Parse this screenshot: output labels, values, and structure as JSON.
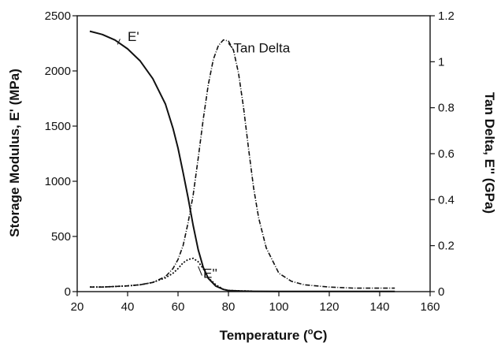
{
  "chart_data": {
    "type": "line",
    "title": "",
    "xlabel_main": "Temperature (",
    "xlabel_sup": "o",
    "xlabel_end": "C)",
    "ylabel_left": "Storage Modulus, E' (MPa)",
    "ylabel_right": "Tan Delta, E'' (GPa)",
    "xlim": [
      20,
      160
    ],
    "ylim_left": [
      0,
      2500
    ],
    "ylim_right": [
      0,
      1.2
    ],
    "x_ticks": [
      "20",
      "40",
      "60",
      "80",
      "100",
      "120",
      "140",
      "160"
    ],
    "y_left_ticks": [
      "0",
      "500",
      "1000",
      "1500",
      "2000",
      "2500"
    ],
    "y_right_ticks": [
      "0",
      "0.2",
      "0.4",
      "0.6",
      "0.8",
      "1",
      "1.2"
    ],
    "grid": false,
    "series": [
      {
        "name": "E'",
        "axis": "left",
        "style": "solid",
        "x": [
          25,
          30,
          35,
          40,
          45,
          50,
          55,
          58,
          60,
          62,
          64,
          66,
          68,
          70,
          72,
          75,
          78,
          80,
          85,
          90,
          100,
          110,
          120,
          130,
          140,
          146
        ],
        "y": [
          2360,
          2330,
          2280,
          2200,
          2090,
          1930,
          1700,
          1480,
          1300,
          1080,
          850,
          600,
          380,
          220,
          120,
          50,
          20,
          10,
          5,
          3,
          2,
          2,
          2,
          2,
          2,
          2
        ]
      },
      {
        "name": "Tan Delta",
        "axis": "right",
        "style": "dashdot",
        "x": [
          25,
          30,
          40,
          45,
          50,
          55,
          58,
          60,
          62,
          64,
          66,
          68,
          70,
          72,
          74,
          76,
          78,
          80,
          82,
          84,
          86,
          88,
          90,
          92,
          95,
          100,
          105,
          110,
          120,
          130,
          140,
          146
        ],
        "y": [
          0.02,
          0.02,
          0.025,
          0.03,
          0.04,
          0.065,
          0.1,
          0.14,
          0.2,
          0.3,
          0.42,
          0.58,
          0.75,
          0.9,
          1.01,
          1.07,
          1.095,
          1.09,
          1.05,
          0.95,
          0.8,
          0.62,
          0.45,
          0.32,
          0.19,
          0.08,
          0.045,
          0.03,
          0.02,
          0.015,
          0.015,
          0.015
        ]
      },
      {
        "name": "E''",
        "axis": "right",
        "style": "dotted",
        "x": [
          25,
          30,
          40,
          45,
          50,
          55,
          58,
          60,
          62,
          64,
          66,
          68,
          70,
          72,
          75,
          78,
          80,
          85,
          90
        ],
        "y": [
          0.02,
          0.02,
          0.025,
          0.03,
          0.04,
          0.06,
          0.08,
          0.1,
          0.125,
          0.14,
          0.145,
          0.13,
          0.1,
          0.06,
          0.03,
          0.01,
          0.005,
          0.003,
          0.002
        ]
      }
    ],
    "annotations": [
      {
        "text": "E'",
        "series": "E'"
      },
      {
        "text": "Tan Delta",
        "series": "Tan Delta"
      },
      {
        "text": "E''",
        "series": "E''"
      }
    ]
  }
}
